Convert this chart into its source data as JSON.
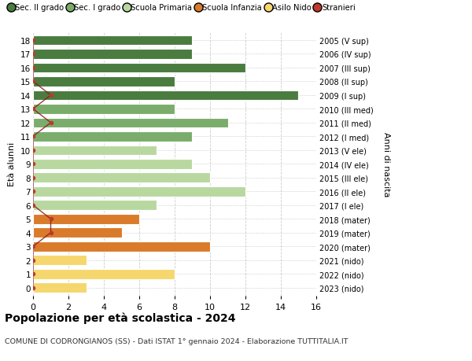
{
  "ages": [
    18,
    17,
    16,
    15,
    14,
    13,
    12,
    11,
    10,
    9,
    8,
    7,
    6,
    5,
    4,
    3,
    2,
    1,
    0
  ],
  "right_labels": [
    "2005 (V sup)",
    "2006 (IV sup)",
    "2007 (III sup)",
    "2008 (II sup)",
    "2009 (I sup)",
    "2010 (III med)",
    "2011 (II med)",
    "2012 (I med)",
    "2013 (V ele)",
    "2014 (IV ele)",
    "2015 (III ele)",
    "2016 (II ele)",
    "2017 (I ele)",
    "2018 (mater)",
    "2019 (mater)",
    "2020 (mater)",
    "2021 (nido)",
    "2022 (nido)",
    "2023 (nido)"
  ],
  "values": [
    9,
    9,
    12,
    8,
    15,
    8,
    11,
    9,
    7,
    9,
    10,
    12,
    7,
    6,
    5,
    10,
    3,
    8,
    3
  ],
  "bar_colors": [
    "#4a7c3f",
    "#4a7c3f",
    "#4a7c3f",
    "#4a7c3f",
    "#4a7c3f",
    "#7aad6b",
    "#7aad6b",
    "#7aad6b",
    "#b8d8a0",
    "#b8d8a0",
    "#b8d8a0",
    "#b8d8a0",
    "#b8d8a0",
    "#d97b2b",
    "#d97b2b",
    "#d97b2b",
    "#f5d76e",
    "#f5d76e",
    "#f5d76e"
  ],
  "stranieri_x": [
    0,
    0,
    0,
    0,
    1,
    0,
    1,
    0,
    0,
    0,
    0,
    0,
    0,
    1,
    1,
    0,
    0,
    0,
    0
  ],
  "title": "Popolazione per età scolastica - 2024",
  "subtitle": "COMUNE DI CODRONGIANOS (SS) - Dati ISTAT 1° gennaio 2024 - Elaborazione TUTTITALIA.IT",
  "ylabel_left": "Età alunni",
  "ylabel_right": "Anni di nascita",
  "xlim": [
    0,
    16
  ],
  "xticks": [
    0,
    2,
    4,
    6,
    8,
    10,
    12,
    14,
    16
  ],
  "legend_labels": [
    "Sec. II grado",
    "Sec. I grado",
    "Scuola Primaria",
    "Scuola Infanzia",
    "Asilo Nido",
    "Stranieri"
  ],
  "legend_colors": [
    "#4a7c3f",
    "#7aad6b",
    "#b8d8a0",
    "#d97b2b",
    "#f5d76e",
    "#c0392b"
  ],
  "bg_color": "#ffffff",
  "grid_color": "#cccccc"
}
